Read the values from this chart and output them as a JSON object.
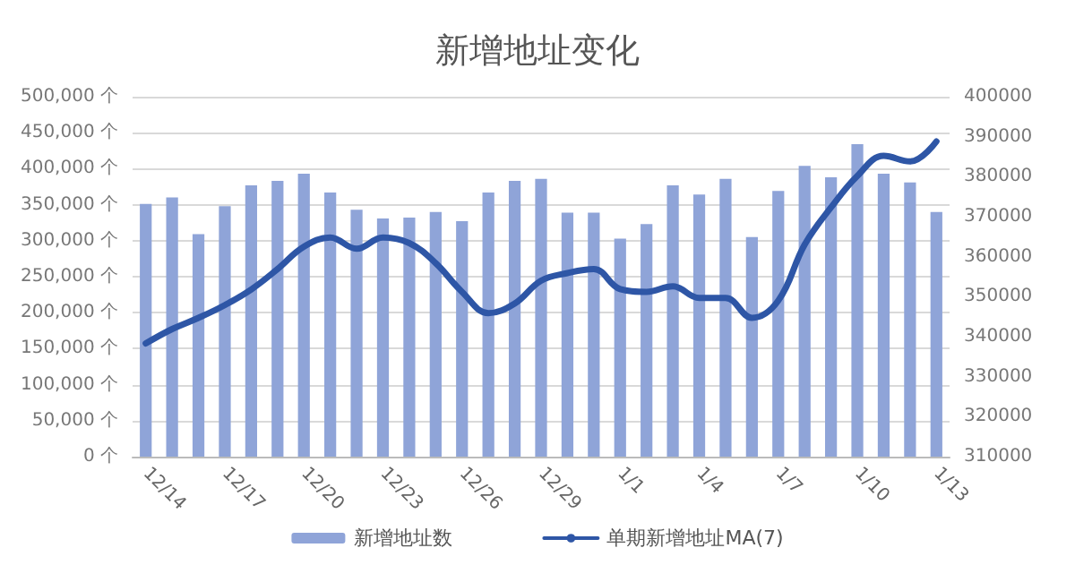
{
  "chart_data": {
    "type": "bar",
    "title": "新增地址变化",
    "categories": [
      "12/14",
      null,
      null,
      "12/17",
      null,
      null,
      "12/20",
      null,
      null,
      "12/23",
      null,
      null,
      "12/26",
      null,
      null,
      "12/29",
      null,
      null,
      "1/1",
      null,
      null,
      "1/4",
      null,
      null,
      "1/7",
      null,
      null,
      "1/10",
      null,
      null,
      "1/13"
    ],
    "series": [
      {
        "name": "新增地址数",
        "color": "#8fa4d8",
        "values": [
          351000,
          360000,
          309000,
          348000,
          377000,
          383000,
          393000,
          367000,
          343000,
          331000,
          332000,
          340000,
          327000,
          367000,
          383000,
          386000,
          339000,
          339000,
          303000,
          323000,
          377000,
          364000,
          386000,
          305000,
          369000,
          404000,
          388000,
          434000,
          393000,
          381000,
          340000
        ]
      },
      {
        "name": "单期新增地址MA(7)",
        "type": "line",
        "axis": "y2",
        "color": "#2e56a6",
        "values": [
          338300,
          341900,
          344700,
          347900,
          351800,
          356900,
          362500,
          364800,
          362000,
          364800,
          363400,
          358400,
          351200,
          345900,
          348300,
          354000,
          355900,
          356900,
          351900,
          351200,
          352600,
          349700,
          349700,
          344700,
          349000,
          363000,
          372300,
          380200,
          385200,
          383800,
          388800
        ]
      }
    ],
    "ylim": [
      0,
      500000
    ],
    "yticks": [
      {
        "value": 0,
        "label": "0 个"
      },
      {
        "value": 50000,
        "label": "50,000 个"
      },
      {
        "value": 100000,
        "label": "100,000 个"
      },
      {
        "value": 150000,
        "label": "150,000 个"
      },
      {
        "value": 200000,
        "label": "200,000 个"
      },
      {
        "value": 250000,
        "label": "250,000 个"
      },
      {
        "value": 300000,
        "label": "300,000 个"
      },
      {
        "value": 350000,
        "label": "350,000 个"
      },
      {
        "value": 400000,
        "label": "400,000 个"
      },
      {
        "value": 450000,
        "label": "450,000 个"
      },
      {
        "value": 500000,
        "label": "500,000 个"
      }
    ],
    "y2lim": [
      310000,
      400000
    ],
    "y2ticks": [
      310000,
      320000,
      330000,
      340000,
      350000,
      360000,
      370000,
      380000,
      390000,
      400000
    ],
    "grid": "y",
    "legend": "bottom",
    "marker": "none",
    "line_style": "solid"
  }
}
